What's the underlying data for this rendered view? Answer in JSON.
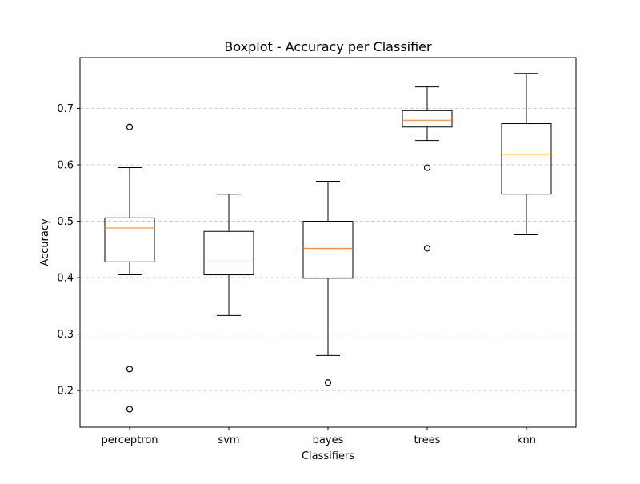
{
  "chart_data": {
    "type": "boxplot",
    "title": "Boxplot - Accuracy per Classifier",
    "xlabel": "Classifiers",
    "ylabel": "Accuracy",
    "categories": [
      "perceptron",
      "svm",
      "bayes",
      "trees",
      "knn"
    ],
    "ylim": [
      0.135,
      0.79
    ],
    "yticks": [
      0.2,
      0.3,
      0.4,
      0.5,
      0.6,
      0.7
    ],
    "ytick_labels": [
      "0.2",
      "0.3",
      "0.4",
      "0.5",
      "0.6",
      "0.7"
    ],
    "grid": "y-dashed",
    "boxes": [
      {
        "category": "perceptron",
        "whisker_low": 0.405,
        "q1": 0.428,
        "median": 0.488,
        "q3": 0.506,
        "whisker_high": 0.595,
        "outliers": [
          0.667,
          0.238,
          0.167
        ]
      },
      {
        "category": "svm",
        "whisker_low": 0.333,
        "q1": 0.405,
        "median": 0.428,
        "q3": 0.482,
        "whisker_high": 0.548,
        "outliers": []
      },
      {
        "category": "bayes",
        "whisker_low": 0.262,
        "q1": 0.399,
        "median": 0.452,
        "q3": 0.5,
        "whisker_high": 0.571,
        "outliers": [
          0.214
        ]
      },
      {
        "category": "trees",
        "whisker_low": 0.643,
        "q1": 0.667,
        "median": 0.679,
        "q3": 0.696,
        "whisker_high": 0.738,
        "outliers": [
          0.595,
          0.452
        ]
      },
      {
        "category": "knn",
        "whisker_low": 0.476,
        "q1": 0.548,
        "median": 0.619,
        "q3": 0.673,
        "whisker_high": 0.762,
        "outliers": []
      }
    ],
    "colors": {
      "box": "#000000",
      "median": "#ff7f0e",
      "grid": "#c0c0c0"
    }
  }
}
